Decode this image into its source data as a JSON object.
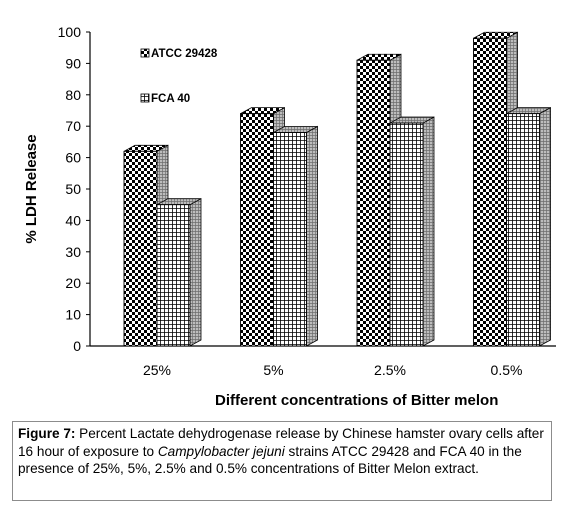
{
  "chart_data": {
    "type": "bar",
    "style": "3d-clustered",
    "categories": [
      "25%",
      "5%",
      "2.5%",
      "0.5%"
    ],
    "series": [
      {
        "name": "ATCC 29428",
        "values": [
          62,
          74,
          91,
          98
        ],
        "pattern": "checker"
      },
      {
        "name": "FCA 40",
        "values": [
          45,
          68,
          71,
          74
        ],
        "pattern": "grid"
      }
    ],
    "ylabel": "% LDH Release",
    "xlabel": "Different concentrations of Bitter melon",
    "ylim": [
      0,
      100
    ],
    "yticks": [
      0,
      10,
      20,
      30,
      40,
      50,
      60,
      70,
      80,
      90,
      100
    ],
    "grid": false,
    "legend": "top-left"
  },
  "caption": {
    "label": "Figure 7:",
    "text_before": " Percent Lactate dehydrogenase release by Chinese hamster ovary cells after 16 hour of exposure to ",
    "species": "Campylobacter jejuni",
    "text_after": " strains ATCC 29428 and FCA 40 in the presence of 25%, 5%, 2.5% and 0.5% concentrations of Bitter Melon extract."
  }
}
